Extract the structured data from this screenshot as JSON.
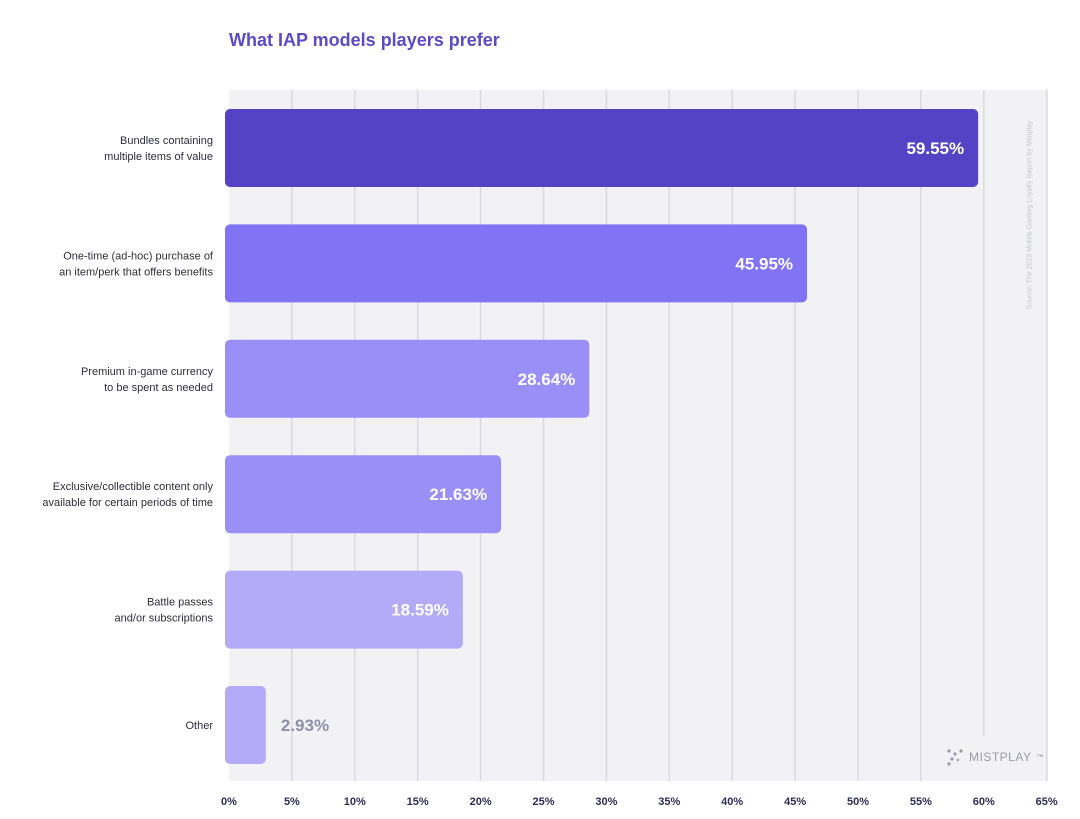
{
  "title": "What IAP models players prefer",
  "source": "Source: The 2023 Mobile Gaming Loyalty Report by Mistplay",
  "brand": {
    "name": "MISTPLAY",
    "mark": "™",
    "icon": "dots-logo-icon"
  },
  "chart_data": {
    "type": "bar",
    "orientation": "horizontal",
    "title": "What IAP models players prefer",
    "categories": [
      [
        "Bundles containing",
        "multiple items of value"
      ],
      [
        "One-time (ad-hoc) purchase of",
        "an item/perk that offers benefits"
      ],
      [
        "Premium in-game currency",
        "to be spent as needed"
      ],
      [
        "Exclusive/collectible content only",
        "available for certain periods of time"
      ],
      [
        "Battle passes",
        "and/or subscriptions"
      ],
      [
        "Other"
      ]
    ],
    "values": [
      59.55,
      45.95,
      28.64,
      21.63,
      18.59,
      2.93
    ],
    "value_labels": [
      "59.55%",
      "45.95%",
      "28.64%",
      "21.63%",
      "18.59%",
      "2.93%"
    ],
    "x_ticks": [
      "0%",
      "5%",
      "10%",
      "15%",
      "20%",
      "25%",
      "30%",
      "35%",
      "40%",
      "45%",
      "50%",
      "55%",
      "60%",
      "65%"
    ],
    "xlim": [
      0,
      65
    ],
    "grid": true,
    "colors": [
      "#5443c4",
      "#8173f3",
      "#9a8ff6",
      "#9a8ff6",
      "#b3abf8",
      "#b3abf8"
    ],
    "label_colors": [
      "#ffffff",
      "#ffffff",
      "#ffffff",
      "#ffffff",
      "#ffffff",
      "#8f8fa8"
    ],
    "background": "#f2f2f5",
    "grid_color": "#d9d9e0",
    "tick_color": "#2e2e54"
  }
}
